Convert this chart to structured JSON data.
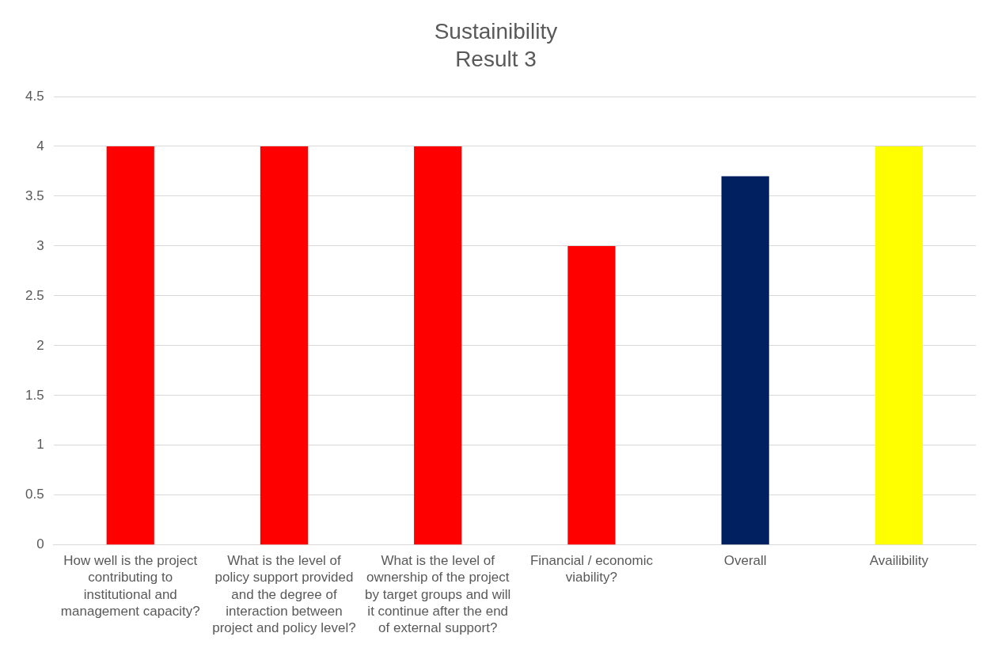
{
  "chart_data": {
    "type": "bar",
    "title": "Sustainibility",
    "subtitle": "Result 3",
    "categories": [
      "How well is the project contributing to institutional and management capacity?",
      "What is the level of policy support provided and the degree of interaction between project and policy level?",
      "What is the level of ownership of the project by target groups and will it continue after the end of external support?",
      "Financial / economic viability?",
      "Overall",
      "Availibility"
    ],
    "values": [
      4,
      4,
      4,
      3,
      3.7,
      4
    ],
    "colors": [
      "#ff0000",
      "#ff0000",
      "#ff0000",
      "#ff0000",
      "#002060",
      "#ffff00"
    ],
    "ylim": [
      0,
      4.5
    ],
    "yticks": [
      0,
      0.5,
      1,
      1.5,
      2,
      2.5,
      3,
      3.5,
      4,
      4.5
    ],
    "grid": "y",
    "legend": false
  }
}
